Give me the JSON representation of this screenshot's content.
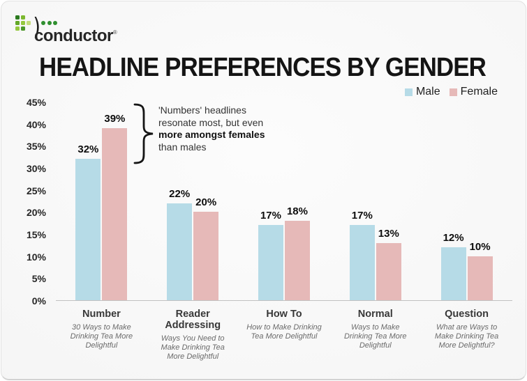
{
  "logo": {
    "brand": "conductor",
    "registered_mark": "®"
  },
  "header": {
    "title": "HEADLINE PREFERENCES BY GENDER"
  },
  "legend": {
    "items": [
      {
        "label": "Male",
        "color": "#b6dbe7"
      },
      {
        "label": "Female",
        "color": "#e6b9b8"
      }
    ]
  },
  "annotation": {
    "text_pre": "'Numbers' headlines resonate most, but even ",
    "text_bold": "more amongst females",
    "text_post": " than males"
  },
  "chart_data": {
    "type": "bar",
    "title": "HEADLINE PREFERENCES BY GENDER",
    "categories": [
      "Number",
      "Reader Addressing",
      "How To",
      "Normal",
      "Question"
    ],
    "category_examples": [
      "30 Ways to Make Drinking Tea More Delightful",
      "Ways You Need to Make Drinking Tea More Delightful",
      "How to Make Drinking Tea More Delightful",
      "Ways to Make Drinking Tea More Delightful",
      "What are Ways to Make Drinking Tea More Delightful?"
    ],
    "series": [
      {
        "name": "Male",
        "color": "#b6dbe7",
        "values": [
          32,
          22,
          17,
          17,
          12
        ]
      },
      {
        "name": "Female",
        "color": "#e6b9b8",
        "values": [
          39,
          20,
          18,
          13,
          10
        ]
      }
    ],
    "value_suffix": "%",
    "ylim": [
      0,
      45
    ],
    "yticks": [
      0,
      5,
      10,
      15,
      20,
      25,
      30,
      35,
      40,
      45
    ],
    "ytick_suffix": "%",
    "grid": false,
    "legend_position": "top-right",
    "xlabel": "",
    "ylabel": ""
  }
}
